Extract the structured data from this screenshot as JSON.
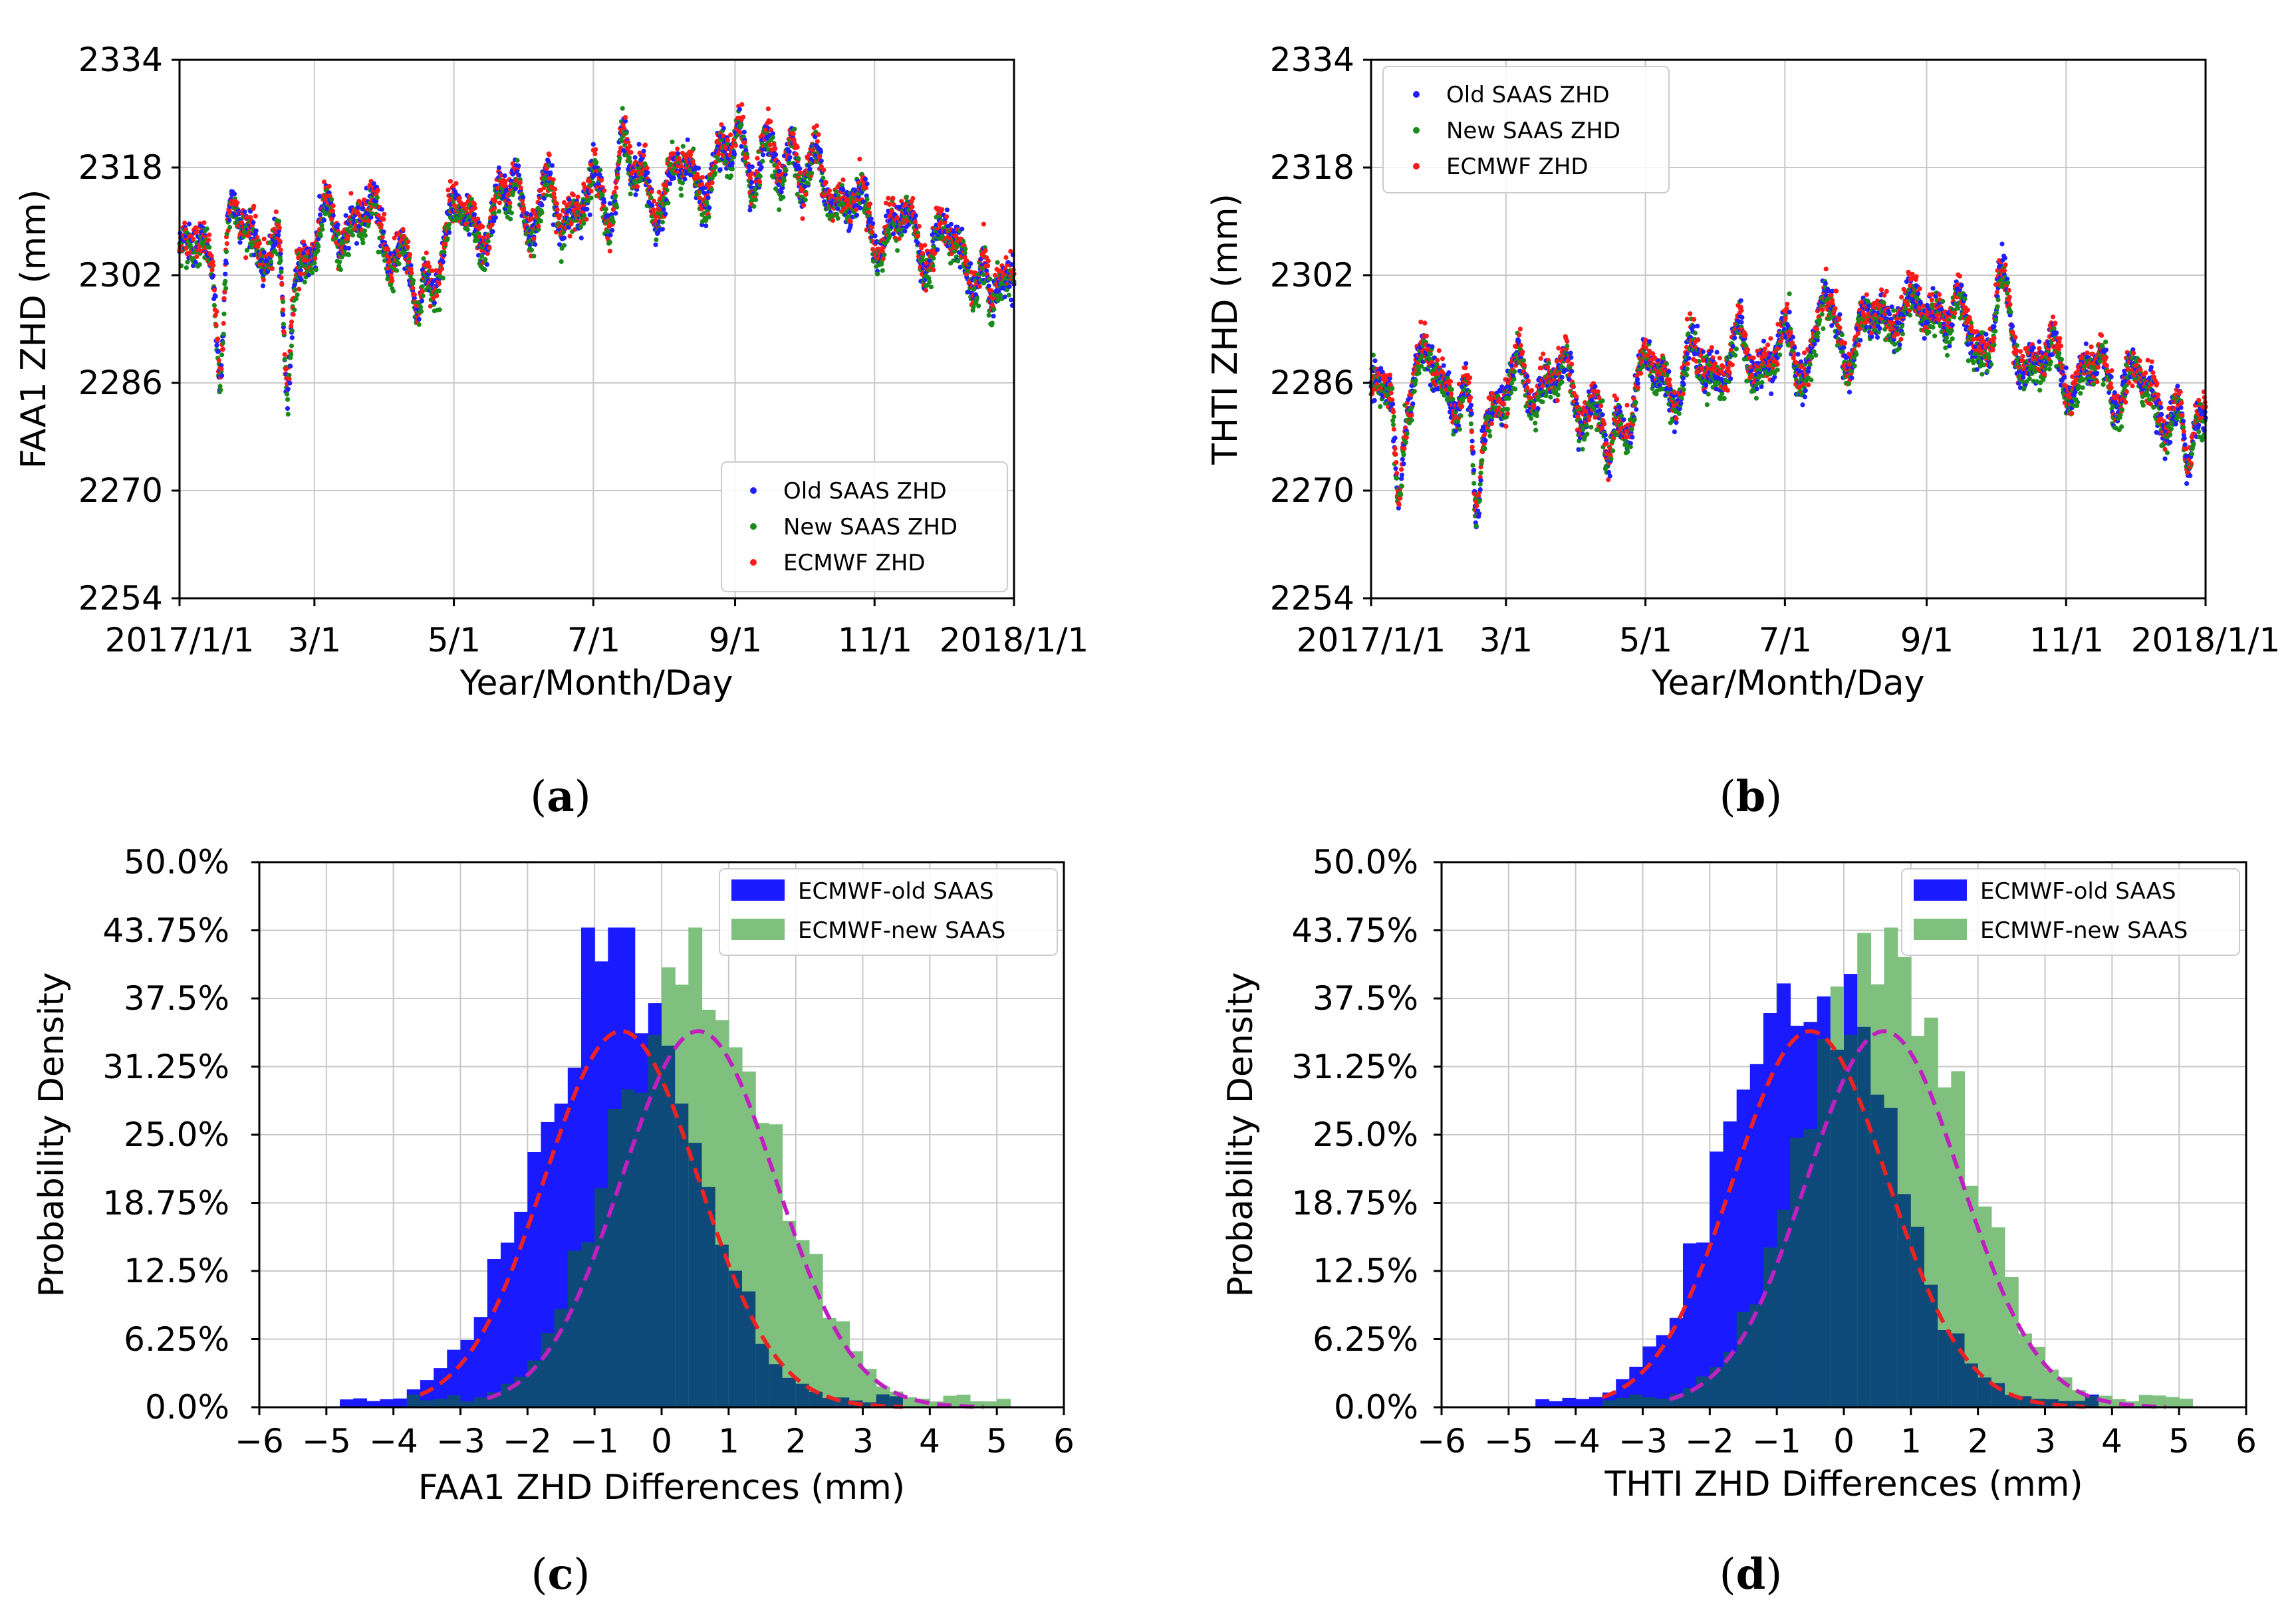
{
  "colors": {
    "old_saas": "#1f1fff",
    "new_saas": "#1a8a1a",
    "ecmwf": "#ff1a1a",
    "hist_old": "#1a1aff",
    "hist_new": "#7fc07f",
    "hist_overlap": "#0d4a7a",
    "fit_old": "#ee2222",
    "fit_new": "#c020c0",
    "grid": "#c8c8c8"
  },
  "chart_data": [
    {
      "id": "a",
      "panel_label": "a",
      "type": "scatter",
      "xlabel": "Year/Month/Day",
      "ylabel": "FAA1 ZHD (mm)",
      "xticks": [
        "2017/1/1",
        "3/1",
        "5/1",
        "7/1",
        "9/1",
        "11/1",
        "2018/1/1"
      ],
      "xtick_days": [
        0,
        59,
        120,
        181,
        243,
        304,
        365
      ],
      "xlim": [
        0,
        365
      ],
      "yticks": [
        2254,
        2270,
        2286,
        2302,
        2318,
        2334
      ],
      "ylim": [
        2254,
        2334
      ],
      "legend_position": "lower-right",
      "series": [
        {
          "name": "Old SAAS ZHD",
          "color": "#1f1fff"
        },
        {
          "name": "New SAAS ZHD",
          "color": "#1a8a1a"
        },
        {
          "name": "ECMWF ZHD",
          "color": "#ff1a1a"
        }
      ],
      "trend_days": [
        0,
        10,
        20,
        30,
        45,
        60,
        75,
        90,
        105,
        120,
        135,
        150,
        165,
        180,
        195,
        210,
        225,
        240,
        255,
        270,
        285,
        300,
        315,
        330,
        345,
        355,
        365
      ],
      "trend_values": [
        2304,
        2306,
        2308,
        2310,
        2303,
        2307,
        2311,
        2309,
        2300,
        2310,
        2310,
        2311,
        2312,
        2313,
        2314,
        2315,
        2317,
        2318,
        2318,
        2316,
        2316,
        2310,
        2309,
        2307,
        2305,
        2301,
        2303
      ],
      "dips": [
        {
          "day": 18,
          "value": 2290
        },
        {
          "day": 47,
          "value": 2285
        },
        {
          "day": 104,
          "value": 2294
        },
        {
          "day": 355,
          "value": 2294
        }
      ],
      "peaks": [
        {
          "day": 194,
          "value": 2326
        },
        {
          "day": 245,
          "value": 2328
        },
        {
          "day": 268,
          "value": 2327
        },
        {
          "day": 147,
          "value": 2321
        }
      ]
    },
    {
      "id": "b",
      "panel_label": "b",
      "type": "scatter",
      "xlabel": "Year/Month/Day",
      "ylabel": "THTI ZHD (mm)",
      "xticks": [
        "2017/1/1",
        "3/1",
        "5/1",
        "7/1",
        "9/1",
        "11/1",
        "2018/1/1"
      ],
      "xtick_days": [
        0,
        59,
        120,
        181,
        243,
        304,
        365
      ],
      "xlim": [
        0,
        365
      ],
      "yticks": [
        2254,
        2270,
        2286,
        2302,
        2318,
        2334
      ],
      "ylim": [
        2254,
        2334
      ],
      "legend_position": "upper-left",
      "series": [
        {
          "name": "Old SAAS ZHD",
          "color": "#1f1fff"
        },
        {
          "name": "New SAAS ZHD",
          "color": "#1a8a1a"
        },
        {
          "name": "ECMWF ZHD",
          "color": "#ff1a1a"
        }
      ],
      "trend_days": [
        0,
        10,
        20,
        30,
        45,
        60,
        75,
        90,
        105,
        120,
        135,
        150,
        165,
        180,
        195,
        210,
        225,
        240,
        255,
        270,
        285,
        300,
        315,
        330,
        345,
        355,
        365
      ],
      "trend_values": [
        2283,
        2285,
        2287,
        2288,
        2282,
        2285,
        2287,
        2285,
        2279,
        2287,
        2287,
        2289,
        2290,
        2290,
        2291,
        2293,
        2295,
        2296,
        2295,
        2292,
        2291,
        2288,
        2287,
        2286,
        2284,
        2279,
        2283
      ],
      "dips": [
        {
          "day": 12,
          "value": 2269
        },
        {
          "day": 46,
          "value": 2264
        },
        {
          "day": 104,
          "value": 2272
        },
        {
          "day": 357,
          "value": 2272
        }
      ],
      "peaks": [
        {
          "day": 198,
          "value": 2301
        },
        {
          "day": 230,
          "value": 2302
        },
        {
          "day": 249,
          "value": 2303
        },
        {
          "day": 275,
          "value": 2304
        }
      ]
    },
    {
      "id": "c",
      "panel_label": "c",
      "type": "histogram",
      "xlabel": "FAA1 ZHD Differences (mm)",
      "ylabel": "Probability Density",
      "xlim": [
        -6,
        6
      ],
      "xticks": [
        -6,
        -5,
        -4,
        -3,
        -2,
        -1,
        0,
        1,
        2,
        3,
        4,
        5,
        6
      ],
      "xtick_labels": [
        "−6",
        "−5",
        "−4",
        "−3",
        "−2",
        "−1",
        "0",
        "1",
        "2",
        "3",
        "4",
        "5",
        "6"
      ],
      "ylim": [
        0,
        0.5
      ],
      "yticks": [
        0,
        0.0625,
        0.125,
        0.1875,
        0.25,
        0.3125,
        0.375,
        0.4375,
        0.5
      ],
      "ytick_labels": [
        "0.0%",
        "6.25%",
        "12.5%",
        "18.75%",
        "25.0%",
        "31.25%",
        "37.5%",
        "43.75%",
        "50.0%"
      ],
      "legend_position": "upper-right",
      "bin_width": 0.2,
      "series": [
        {
          "name": "ECMWF-old SAAS",
          "color": "#1a1aff",
          "mean": -0.7,
          "std": 1.15,
          "peak": 0.42,
          "start": -4.8,
          "end": 3.6
        },
        {
          "name": "ECMWF-new SAAS",
          "color": "#7fc07f",
          "mean": 0.5,
          "std": 1.15,
          "peak": 0.42,
          "start": -3.8,
          "end": 5.2
        }
      ],
      "fits": [
        {
          "name": "old SAAS normal fit",
          "color": "#ee2222",
          "mean": -0.6,
          "std": 1.15,
          "peak": 0.345,
          "start": -3.6,
          "end": 3.6
        },
        {
          "name": "new SAAS normal fit",
          "color": "#c020c0",
          "mean": 0.55,
          "std": 1.15,
          "peak": 0.345,
          "start": -2.6,
          "end": 4.8
        }
      ]
    },
    {
      "id": "d",
      "panel_label": "d",
      "type": "histogram",
      "xlabel": "THTI ZHD Differences (mm)",
      "ylabel": "Probability Density",
      "xlim": [
        -6,
        6
      ],
      "xticks": [
        -6,
        -5,
        -4,
        -3,
        -2,
        -1,
        0,
        1,
        2,
        3,
        4,
        5,
        6
      ],
      "xtick_labels": [
        "−6",
        "−5",
        "−4",
        "−3",
        "−2",
        "−1",
        "0",
        "1",
        "2",
        "3",
        "4",
        "5",
        "6"
      ],
      "ylim": [
        0,
        0.5
      ],
      "yticks": [
        0,
        0.0625,
        0.125,
        0.1875,
        0.25,
        0.3125,
        0.375,
        0.4375,
        0.5
      ],
      "ytick_labels": [
        "0.0%",
        "6.25%",
        "12.5%",
        "18.75%",
        "25.0%",
        "31.25%",
        "37.5%",
        "43.75%",
        "50.0%"
      ],
      "legend_position": "upper-right",
      "bin_width": 0.2,
      "series": [
        {
          "name": "ECMWF-old SAAS",
          "color": "#1a1aff",
          "mean": -0.55,
          "std": 1.15,
          "peak": 0.42,
          "start": -4.6,
          "end": 3.8
        },
        {
          "name": "ECMWF-new SAAS",
          "color": "#7fc07f",
          "mean": 0.6,
          "std": 1.15,
          "peak": 0.42,
          "start": -3.6,
          "end": 5.3
        }
      ],
      "fits": [
        {
          "name": "old SAAS normal fit",
          "color": "#ee2222",
          "mean": -0.5,
          "std": 1.15,
          "peak": 0.345,
          "start": -3.6,
          "end": 3.6
        },
        {
          "name": "new SAAS normal fit",
          "color": "#c020c0",
          "mean": 0.6,
          "std": 1.15,
          "peak": 0.345,
          "start": -2.6,
          "end": 4.8
        }
      ]
    }
  ]
}
